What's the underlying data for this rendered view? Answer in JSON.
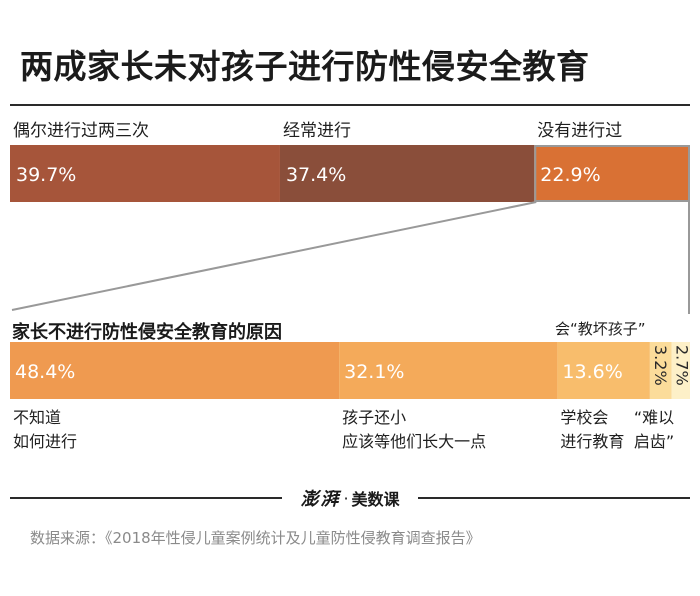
{
  "title": "两成家长未对孩子进行防性侵安全教育",
  "chart_data": [
    {
      "type": "bar",
      "stacked": true,
      "orientation": "horizontal",
      "unit": "%",
      "categories": [
        "偶尔进行过两三次",
        "经常进行",
        "没有进行过"
      ],
      "values": [
        39.7,
        37.4,
        22.9
      ],
      "value_labels": [
        "39.7%",
        "37.4%",
        "22.9%"
      ],
      "colors": [
        "#a6553a",
        "#8a4e3a",
        "#d97134"
      ],
      "highlight": "没有进行过"
    },
    {
      "type": "bar",
      "stacked": true,
      "orientation": "horizontal",
      "unit": "%",
      "title": "家长不进行防性侵安全教育的原因",
      "categories": [
        "不知道如何进行",
        "孩子还小应该等他们长大一点",
        "学校会进行教育",
        "“难以启齿”",
        "会“教坏孩子”"
      ],
      "category_lines": [
        [
          "不知道",
          "如何进行"
        ],
        [
          "孩子还小",
          "应该等他们长大一点"
        ],
        [
          "学校会",
          "进行教育"
        ],
        [
          "“难以",
          "启齿”"
        ],
        [
          "会“教坏孩子”"
        ]
      ],
      "values": [
        48.4,
        32.1,
        13.6,
        3.2,
        2.7
      ],
      "value_labels": [
        "48.4%",
        "32.1%",
        "13.6%",
        "3.2%",
        "2.7%"
      ],
      "colors": [
        "#ef9a50",
        "#f4aa5a",
        "#f8bd6c",
        "#fbdc9a",
        "#fdf0c8"
      ]
    }
  ],
  "logo": {
    "mark": "澎湃",
    "separator": "·",
    "text": "美数课"
  },
  "source": "数据来源：《2018年性侵儿童案例统计及儿童防性侵教育调查报告》",
  "colors": {
    "connector": "#999999",
    "value_text": "#ffffff",
    "footer_line": "#2a2a2a"
  }
}
